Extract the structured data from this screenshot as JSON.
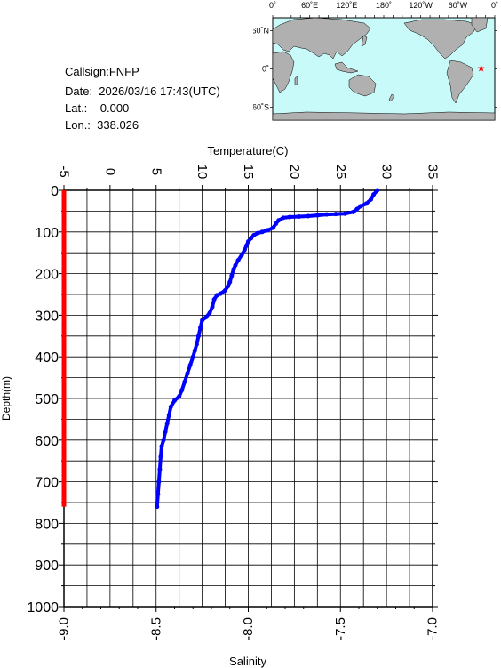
{
  "info": {
    "callsign": "Callsign:FNFP",
    "date": "Date:  2026/03/16 17:43(UTC)",
    "lat": "Lat.:    0.000",
    "lon": "Lon.:  338.026"
  },
  "map": {
    "lon_labels": [
      "0˚",
      "60˚E",
      "120˚E",
      "180˚",
      "120˚W",
      "60˚W",
      "0˚"
    ],
    "lat_labels": [
      "60˚N",
      "0˚",
      "60˚S"
    ],
    "marker": {
      "lon": 338.026,
      "lat": 0.0,
      "color": "#ff0000"
    },
    "ocean_color": "#c8fafa",
    "land_color": "#b0b0b0"
  },
  "chart_data": {
    "type": "scatter",
    "xlabel_top": "Temperature(C)",
    "xlabel_bottom": "Salinity",
    "ylabel": "Depth(m)",
    "temperature_range": [
      -5,
      35
    ],
    "temperature_ticks": [
      "-5",
      "0",
      "5",
      "10",
      "15",
      "20",
      "25",
      "30",
      "35"
    ],
    "salinity_range": [
      -9.0,
      -7.0
    ],
    "salinity_ticks": [
      "-9.0",
      "-8.5",
      "-8.0",
      "-7.5",
      "-7.0"
    ],
    "depth_range": [
      0,
      1000
    ],
    "depth_ticks": [
      "0",
      "100",
      "200",
      "300",
      "400",
      "500",
      "600",
      "700",
      "800",
      "900",
      "1000"
    ],
    "grid": true,
    "series": [
      {
        "color": "#0000ff",
        "axis": "temperature",
        "points": [
          [
            29.0,
            0
          ],
          [
            28.6,
            10
          ],
          [
            28.3,
            22
          ],
          [
            27.8,
            32
          ],
          [
            27.2,
            38
          ],
          [
            26.8,
            45
          ],
          [
            26.4,
            52
          ],
          [
            25.5,
            56
          ],
          [
            24.5,
            57
          ],
          [
            23.5,
            58
          ],
          [
            22.5,
            60
          ],
          [
            21.5,
            62
          ],
          [
            20.5,
            63
          ],
          [
            19.5,
            64
          ],
          [
            18.8,
            66
          ],
          [
            18.3,
            72
          ],
          [
            18.0,
            80
          ],
          [
            17.7,
            90
          ],
          [
            17.1,
            96
          ],
          [
            16.5,
            100
          ],
          [
            16.0,
            103
          ],
          [
            15.6,
            108
          ],
          [
            15.3,
            115
          ],
          [
            15.0,
            123
          ],
          [
            14.8,
            133
          ],
          [
            14.6,
            143
          ],
          [
            14.3,
            155
          ],
          [
            13.9,
            168
          ],
          [
            13.6,
            180
          ],
          [
            13.4,
            190
          ],
          [
            13.2,
            205
          ],
          [
            13.0,
            220
          ],
          [
            12.8,
            230
          ],
          [
            12.5,
            240
          ],
          [
            12.0,
            248
          ],
          [
            11.6,
            252
          ],
          [
            11.3,
            262
          ],
          [
            11.1,
            280
          ],
          [
            10.8,
            295
          ],
          [
            10.4,
            305
          ],
          [
            10.0,
            312
          ],
          [
            9.8,
            330
          ],
          [
            9.6,
            350
          ],
          [
            9.4,
            370
          ],
          [
            9.2,
            385
          ],
          [
            9.0,
            400
          ],
          [
            8.7,
            420
          ],
          [
            8.4,
            440
          ],
          [
            8.1,
            460
          ],
          [
            7.8,
            480
          ],
          [
            7.5,
            495
          ],
          [
            7.0,
            505
          ],
          [
            6.6,
            520
          ],
          [
            6.4,
            540
          ],
          [
            6.2,
            560
          ],
          [
            6.0,
            580
          ],
          [
            5.8,
            600
          ],
          [
            5.6,
            615
          ],
          [
            5.5,
            640
          ],
          [
            5.4,
            670
          ],
          [
            5.3,
            700
          ],
          [
            5.2,
            730
          ],
          [
            5.1,
            760
          ]
        ]
      },
      {
        "color": "#ff0000",
        "axis": "salinity",
        "points": [
          [
            -9.0,
            0
          ],
          [
            -9.0,
            760
          ]
        ]
      }
    ]
  }
}
